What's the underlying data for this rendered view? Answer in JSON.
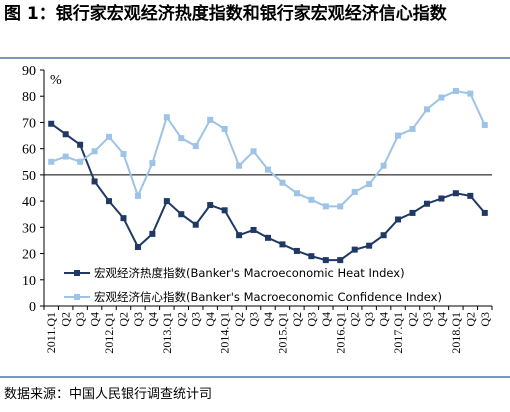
{
  "figure": {
    "title": "图 1：银行家宏观经济热度指数和银行家宏观经济信心指数",
    "source": "数据来源：中国人民银行调查统计司"
  },
  "chart_data": {
    "type": "line",
    "ylabel": "%",
    "ylim": [
      0,
      90
    ],
    "yticks": [
      0,
      10,
      20,
      30,
      40,
      50,
      60,
      70,
      80,
      90
    ],
    "reference_line": 50,
    "legend_position": "lower-left",
    "x": [
      "2011.Q1",
      "Q2",
      "Q3",
      "Q4",
      "2012.Q1",
      "Q2",
      "Q3",
      "Q4",
      "2013.Q1",
      "Q2",
      "Q3",
      "Q4",
      "2014.Q1",
      "Q2",
      "Q3",
      "Q4",
      "2015.Q1",
      "Q2",
      "Q3",
      "Q4",
      "2016.Q1",
      "Q2",
      "Q3",
      "Q4",
      "2017.Q1",
      "Q2",
      "Q3",
      "Q4",
      "2018.Q1",
      "Q2",
      "Q3"
    ],
    "series": [
      {
        "name": "宏观经济热度指数(Banker's Macroeconomic Heat Index)",
        "color": "#1f3864",
        "values": [
          69.5,
          65.5,
          61.5,
          47.5,
          40,
          33.5,
          22.5,
          27.5,
          40,
          35,
          31,
          38.5,
          36.5,
          27,
          29,
          26,
          23.5,
          21,
          19,
          17.5,
          17.5,
          21.5,
          23,
          27,
          33,
          35.5,
          39,
          41,
          43,
          42,
          35.5
        ]
      },
      {
        "name": "宏观经济信心指数(Banker's Macroeconomic Confidence Index)",
        "color": "#9dc3e6",
        "values": [
          55,
          57,
          55,
          59,
          64.5,
          58,
          42,
          54.5,
          72,
          64,
          61,
          71,
          67.5,
          53.5,
          59,
          52,
          47,
          43,
          40.5,
          38,
          38,
          43.5,
          46.5,
          53.5,
          65,
          67.5,
          75,
          79.5,
          82,
          81,
          69
        ]
      }
    ]
  }
}
